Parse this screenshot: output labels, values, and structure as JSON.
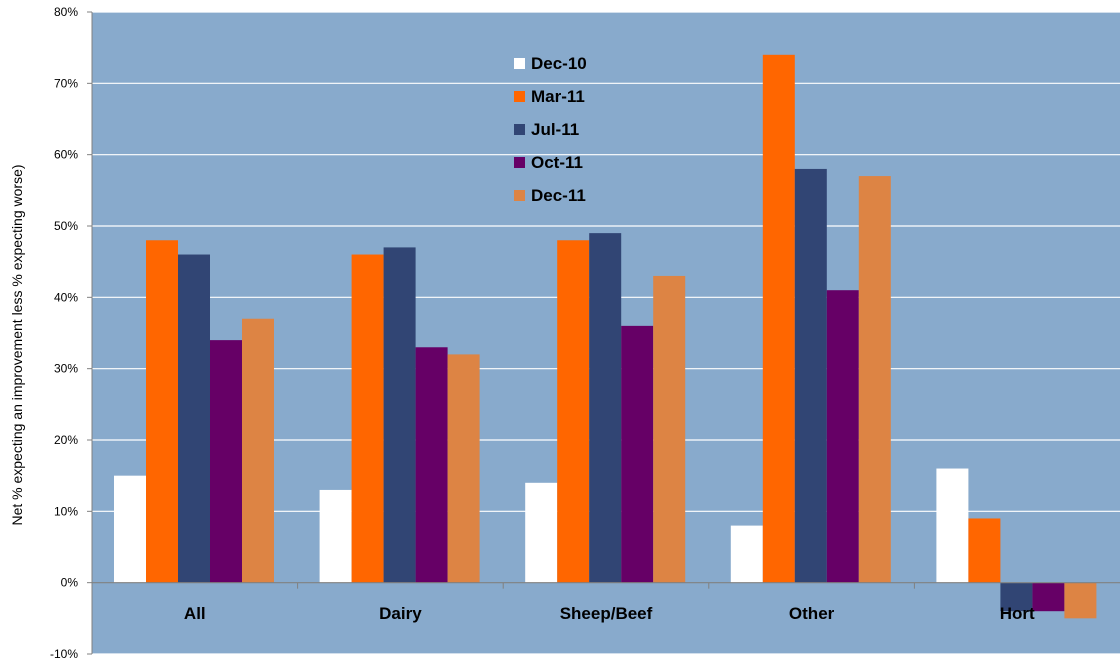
{
  "chart_data": {
    "type": "bar",
    "title": "",
    "xlabel": "",
    "ylabel": "Net % expecting an improvement less % expecting worse)",
    "ylim": [
      -10,
      80
    ],
    "y_ticks": [
      -10,
      0,
      10,
      20,
      30,
      40,
      50,
      60,
      70,
      80
    ],
    "y_unit": "%",
    "grid": true,
    "legend_position": "top-center",
    "categories": [
      "All",
      "Dairy",
      "Sheep/Beef",
      "Other",
      "Hort"
    ],
    "series": [
      {
        "name": "Dec-10",
        "color": "#ffffff",
        "values": [
          15,
          13,
          14,
          8,
          16
        ]
      },
      {
        "name": "Mar-11",
        "color": "#ff6600",
        "values": [
          48,
          46,
          48,
          74,
          9
        ]
      },
      {
        "name": "Jul-11",
        "color": "#314574",
        "values": [
          46,
          47,
          49,
          58,
          -4
        ]
      },
      {
        "name": "Oct-11",
        "color": "#660066",
        "values": [
          34,
          33,
          36,
          41,
          -4
        ]
      },
      {
        "name": "Dec-11",
        "color": "#dd8444",
        "values": [
          37,
          32,
          43,
          57,
          -5
        ]
      }
    ],
    "colors": {
      "plot_background": "#88aacc",
      "gridline": "#ffffff",
      "axis": "#808080"
    }
  }
}
